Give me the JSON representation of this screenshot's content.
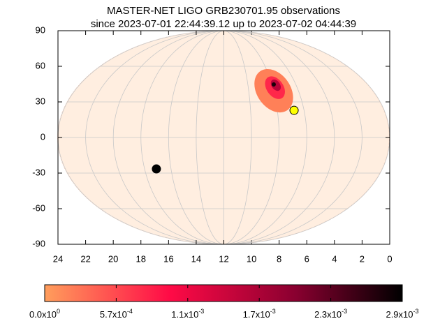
{
  "chart_data": {
    "type": "skymap",
    "title": "MASTER-NET LIGO GRB230701.95 observations",
    "subtitle": "since 2023-07-01 22:44:39.12 up to 2023-07-02 04:44:39",
    "xlim": [
      24,
      0
    ],
    "xticks": [
      24,
      22,
      20,
      18,
      16,
      14,
      12,
      10,
      8,
      6,
      4,
      2,
      0
    ],
    "ylim": [
      -90,
      90
    ],
    "yticks": [
      -90,
      -60,
      -30,
      0,
      30,
      60,
      90
    ],
    "grid": true,
    "points": [
      {
        "x": 16.88,
        "y": -26.5,
        "color": "#000000"
      },
      {
        "x": 6.92,
        "y": 22.9,
        "color": "#ffff00"
      }
    ],
    "region": {
      "x": [
        8.39,
        8.3,
        8.24,
        8.39
      ],
      "y": [
        39.4,
        42.0,
        44.1,
        44.7
      ],
      "values": [
        0.0002,
        0.0008,
        0.0016,
        0.0027
      ]
    },
    "cblim": [
      0,
      0.00285
    ],
    "cbticks": [
      {
        "value": 0,
        "label": "0.0x10",
        "exponent": "0"
      },
      {
        "value": 0.00057,
        "label": "5.7x10",
        "exponent": "-4"
      },
      {
        "value": 0.00114,
        "label": "1.1x10",
        "exponent": "-3"
      },
      {
        "value": 0.00171,
        "label": "1.7x10",
        "exponent": "-3"
      },
      {
        "value": 0.00228,
        "label": "2.3x10",
        "exponent": "-3"
      },
      {
        "value": 0.00285,
        "label": "2.9x10",
        "exponent": "-3"
      }
    ]
  }
}
